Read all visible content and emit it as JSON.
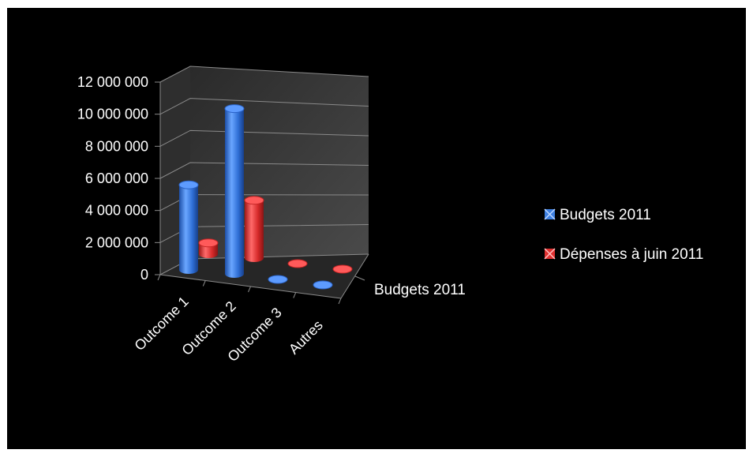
{
  "chart_data": {
    "type": "bar",
    "variant": "3d-cylinder",
    "categories": [
      "Outcome 1",
      "Outcome 2",
      "Outcome 3",
      "Autres"
    ],
    "series": [
      {
        "name": "Budgets 2011",
        "values": [
          5300000,
          10300000,
          0,
          0
        ],
        "color": "#3d7fe0"
      },
      {
        "name": "Dépenses à juin 2011",
        "values": [
          700000,
          3600000,
          0,
          0
        ],
        "color": "#e03030"
      }
    ],
    "y_ticks": [
      "0",
      "2 000 000",
      "4 000 000",
      "6 000 000",
      "8 000 000",
      "10 000 000",
      "12 000 000"
    ],
    "ylim": [
      0,
      12000000
    ],
    "depth_axis_label": "Budgets 2011",
    "grid": true,
    "legend_position": "right",
    "background": "#000000",
    "wall_color": "#3a3a3a"
  }
}
